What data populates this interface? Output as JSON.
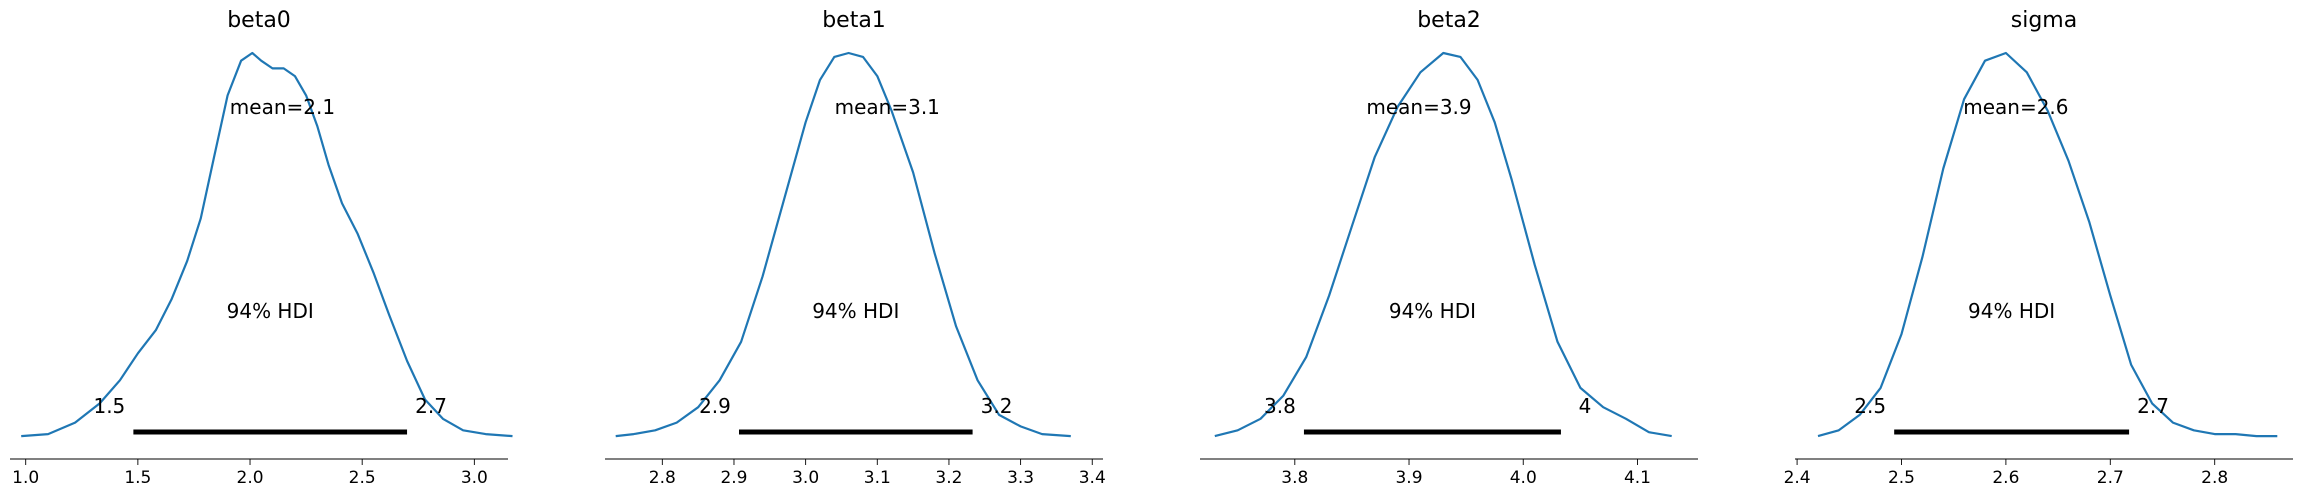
{
  "colors": {
    "density": "#1f77b4",
    "hdi": "#000000"
  },
  "chart_data": [
    {
      "type": "line",
      "title": "beta0",
      "mean_label": "mean=2.1",
      "hdi_label": "94% HDI",
      "hdi": {
        "low": 1.48,
        "high": 2.7,
        "low_label": "1.5",
        "high_label": "2.7"
      },
      "xlim": [
        0.93,
        3.15
      ],
      "xticks": [
        1.0,
        1.5,
        2.0,
        2.5,
        3.0
      ],
      "xtick_labels": [
        "1.0",
        "1.5",
        "2.0",
        "2.5",
        "3.0"
      ],
      "density": {
        "x": [
          0.98,
          1.1,
          1.22,
          1.33,
          1.42,
          1.5,
          1.58,
          1.65,
          1.72,
          1.78,
          1.84,
          1.9,
          1.96,
          2.01,
          2.05,
          2.1,
          2.15,
          2.2,
          2.25,
          2.3,
          2.35,
          2.41,
          2.48,
          2.55,
          2.62,
          2.7,
          2.78,
          2.86,
          2.95,
          3.05,
          3.17
        ],
        "y": [
          0.005,
          0.01,
          0.04,
          0.09,
          0.15,
          0.22,
          0.28,
          0.36,
          0.46,
          0.57,
          0.73,
          0.89,
          0.98,
          1.0,
          0.98,
          0.96,
          0.96,
          0.94,
          0.89,
          0.81,
          0.71,
          0.61,
          0.53,
          0.43,
          0.32,
          0.2,
          0.1,
          0.05,
          0.02,
          0.01,
          0.005
        ]
      }
    },
    {
      "type": "line",
      "title": "beta1",
      "mean_label": "mean=3.1",
      "hdi_label": "94% HDI",
      "hdi": {
        "low": 2.907,
        "high": 3.233,
        "low_label": "2.9",
        "high_label": "3.2"
      },
      "xlim": [
        2.72,
        3.415
      ],
      "xticks": [
        2.8,
        2.9,
        3.0,
        3.1,
        3.2,
        3.3,
        3.4
      ],
      "xtick_labels": [
        "2.8",
        "2.9",
        "3.0",
        "3.1",
        "3.2",
        "3.3",
        "3.4"
      ],
      "density": {
        "x": [
          2.735,
          2.76,
          2.79,
          2.82,
          2.85,
          2.88,
          2.91,
          2.94,
          2.97,
          3.0,
          3.02,
          3.04,
          3.06,
          3.08,
          3.1,
          3.12,
          3.15,
          3.18,
          3.21,
          3.24,
          3.27,
          3.3,
          3.33,
          3.37
        ],
        "y": [
          0.005,
          0.01,
          0.02,
          0.04,
          0.08,
          0.15,
          0.25,
          0.42,
          0.62,
          0.82,
          0.93,
          0.99,
          1.0,
          0.99,
          0.94,
          0.85,
          0.69,
          0.48,
          0.29,
          0.15,
          0.06,
          0.03,
          0.01,
          0.005
        ]
      }
    },
    {
      "type": "line",
      "title": "beta2",
      "mean_label": "mean=3.9",
      "hdi_label": "94% HDI",
      "hdi": {
        "low": 3.808,
        "high": 4.033,
        "low_label": "3.8",
        "high_label": "4"
      },
      "xlim": [
        3.717,
        4.153
      ],
      "xticks": [
        3.8,
        3.9,
        4.0,
        4.1
      ],
      "xtick_labels": [
        "3.8",
        "3.9",
        "4.0",
        "4.1"
      ],
      "density": {
        "x": [
          3.73,
          3.75,
          3.77,
          3.79,
          3.81,
          3.83,
          3.85,
          3.87,
          3.89,
          3.91,
          3.93,
          3.945,
          3.96,
          3.975,
          3.99,
          4.01,
          4.03,
          4.05,
          4.07,
          4.09,
          4.11,
          4.13
        ],
        "y": [
          0.005,
          0.02,
          0.05,
          0.11,
          0.21,
          0.37,
          0.55,
          0.73,
          0.86,
          0.95,
          1.0,
          0.99,
          0.93,
          0.82,
          0.67,
          0.45,
          0.25,
          0.13,
          0.08,
          0.05,
          0.015,
          0.005
        ]
      }
    },
    {
      "type": "line",
      "title": "sigma",
      "mean_label": "mean=2.6",
      "hdi_label": "94% HDI",
      "hdi": {
        "low": 2.493,
        "high": 2.718,
        "low_label": "2.5",
        "high_label": "2.7"
      },
      "xlim": [
        2.398,
        2.875
      ],
      "xticks": [
        2.4,
        2.5,
        2.6,
        2.7,
        2.8
      ],
      "xtick_labels": [
        "2.4",
        "2.5",
        "2.6",
        "2.7",
        "2.8"
      ],
      "density": {
        "x": [
          2.42,
          2.44,
          2.46,
          2.48,
          2.5,
          2.52,
          2.54,
          2.56,
          2.58,
          2.6,
          2.62,
          2.64,
          2.66,
          2.68,
          2.7,
          2.72,
          2.74,
          2.76,
          2.78,
          2.8,
          2.82,
          2.84,
          2.86
        ],
        "y": [
          0.005,
          0.02,
          0.06,
          0.13,
          0.27,
          0.47,
          0.7,
          0.88,
          0.98,
          1.0,
          0.95,
          0.85,
          0.72,
          0.56,
          0.37,
          0.19,
          0.09,
          0.04,
          0.02,
          0.01,
          0.01,
          0.005,
          0.005
        ]
      }
    }
  ]
}
